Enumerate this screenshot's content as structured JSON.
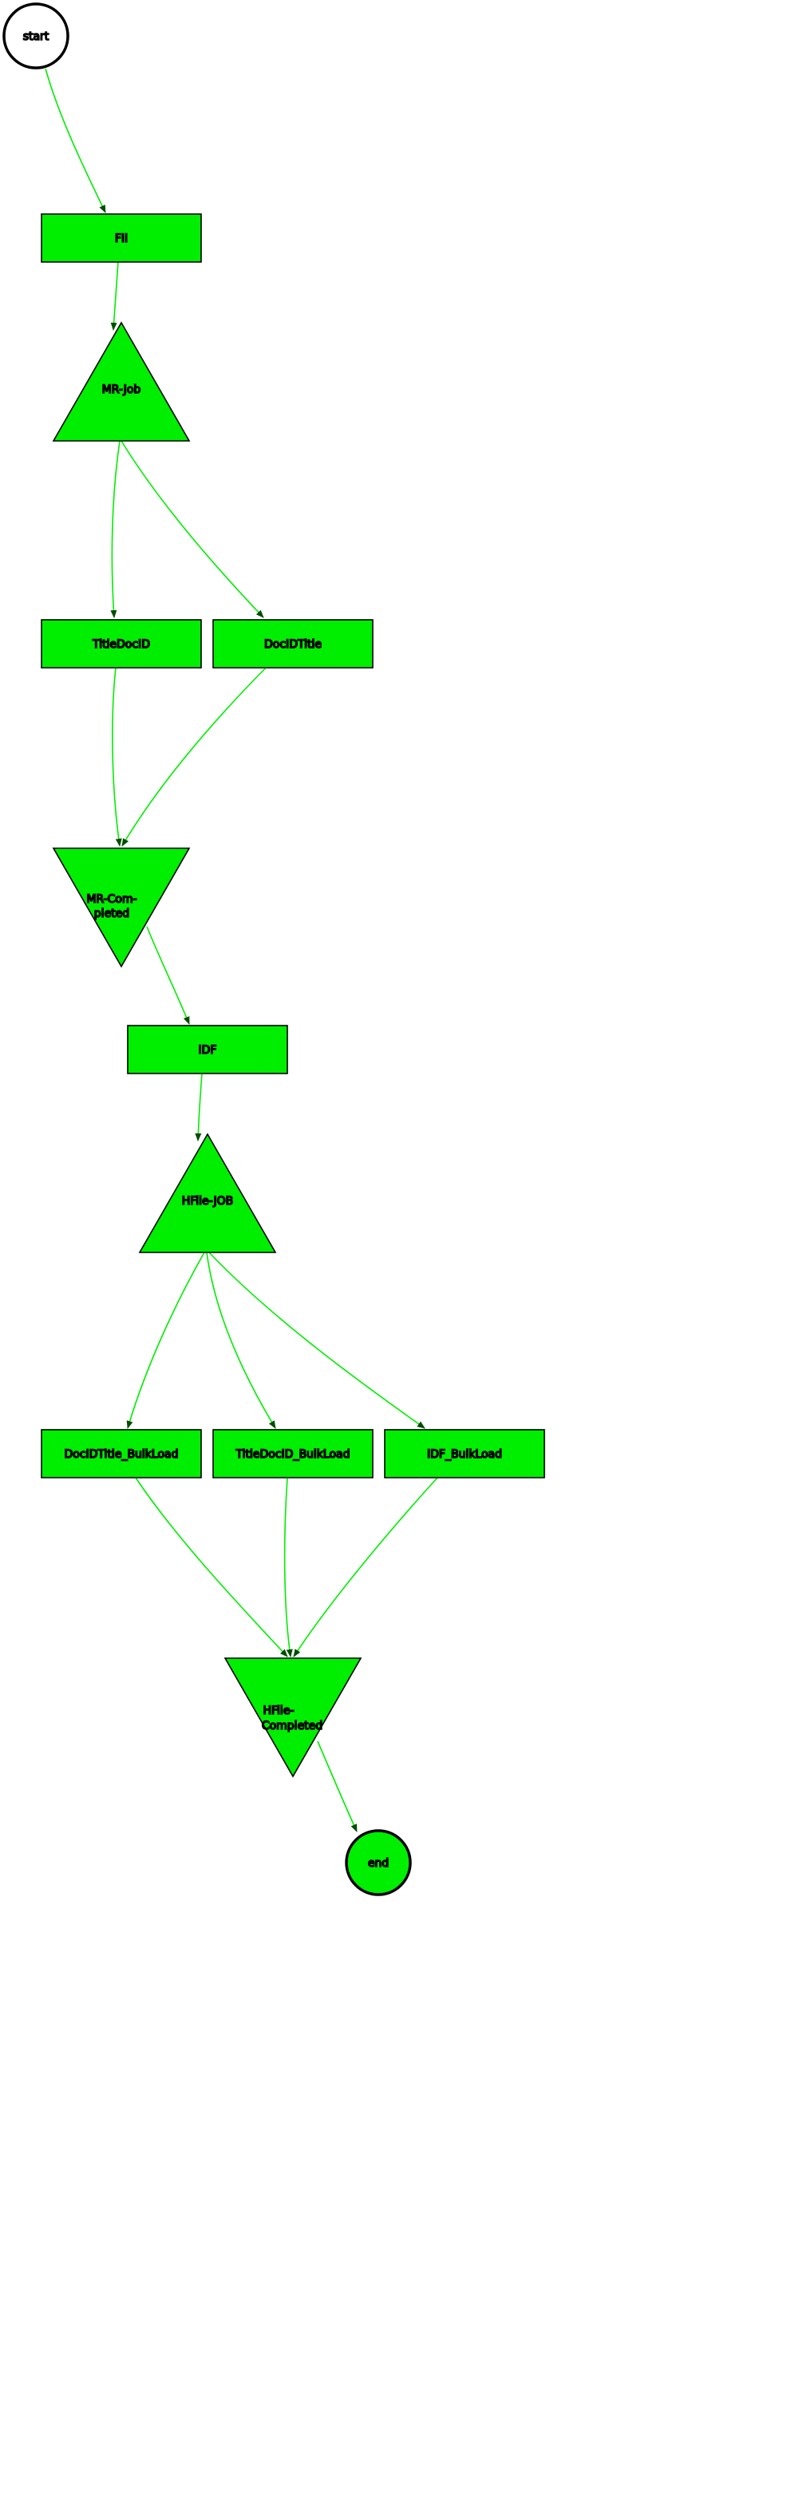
{
  "colors": {
    "node_fill": "#00ee00",
    "edge": "#00ee00",
    "arrowhead": "#004d00",
    "stroke": "#000000",
    "start_fill": "#ffffff"
  },
  "nodes": {
    "start": {
      "label": "start",
      "shape": "circle"
    },
    "fii": {
      "label": "FII",
      "shape": "box"
    },
    "mr_job": {
      "label": "MR-Job",
      "shape": "triangle-up"
    },
    "titledocid": {
      "label": "TitleDocID",
      "shape": "box"
    },
    "docidtitle": {
      "label": "DocIDTitle",
      "shape": "box"
    },
    "mr_completed": {
      "label_lines": [
        "MR-Com-",
        "pleted"
      ],
      "shape": "triangle-down"
    },
    "idf": {
      "label": "IDF",
      "shape": "box"
    },
    "hfile_job": {
      "label": "HFile-JOB",
      "shape": "triangle-up"
    },
    "docidtitle_bulkload": {
      "label": "DocIDTitle_BulkLoad",
      "shape": "box"
    },
    "titledocid_bulkload": {
      "label": "TitleDocID_BulkLoad",
      "shape": "box"
    },
    "idf_bulkload": {
      "label": "IDF_BulkLoad",
      "shape": "box"
    },
    "hfile_completed": {
      "label_lines": [
        "HFile-",
        "Completed"
      ],
      "shape": "triangle-down"
    },
    "end": {
      "label": "end",
      "shape": "circle"
    }
  },
  "edges": [
    {
      "from": "start",
      "to": "fii"
    },
    {
      "from": "fii",
      "to": "mr_job"
    },
    {
      "from": "mr_job",
      "to": "titledocid"
    },
    {
      "from": "mr_job",
      "to": "docidtitle"
    },
    {
      "from": "titledocid",
      "to": "mr_completed"
    },
    {
      "from": "docidtitle",
      "to": "mr_completed"
    },
    {
      "from": "mr_completed",
      "to": "idf"
    },
    {
      "from": "idf",
      "to": "hfile_job"
    },
    {
      "from": "hfile_job",
      "to": "docidtitle_bulkload"
    },
    {
      "from": "hfile_job",
      "to": "titledocid_bulkload"
    },
    {
      "from": "hfile_job",
      "to": "idf_bulkload"
    },
    {
      "from": "docidtitle_bulkload",
      "to": "hfile_completed"
    },
    {
      "from": "titledocid_bulkload",
      "to": "hfile_completed"
    },
    {
      "from": "idf_bulkload",
      "to": "hfile_completed"
    },
    {
      "from": "hfile_completed",
      "to": "end"
    }
  ]
}
